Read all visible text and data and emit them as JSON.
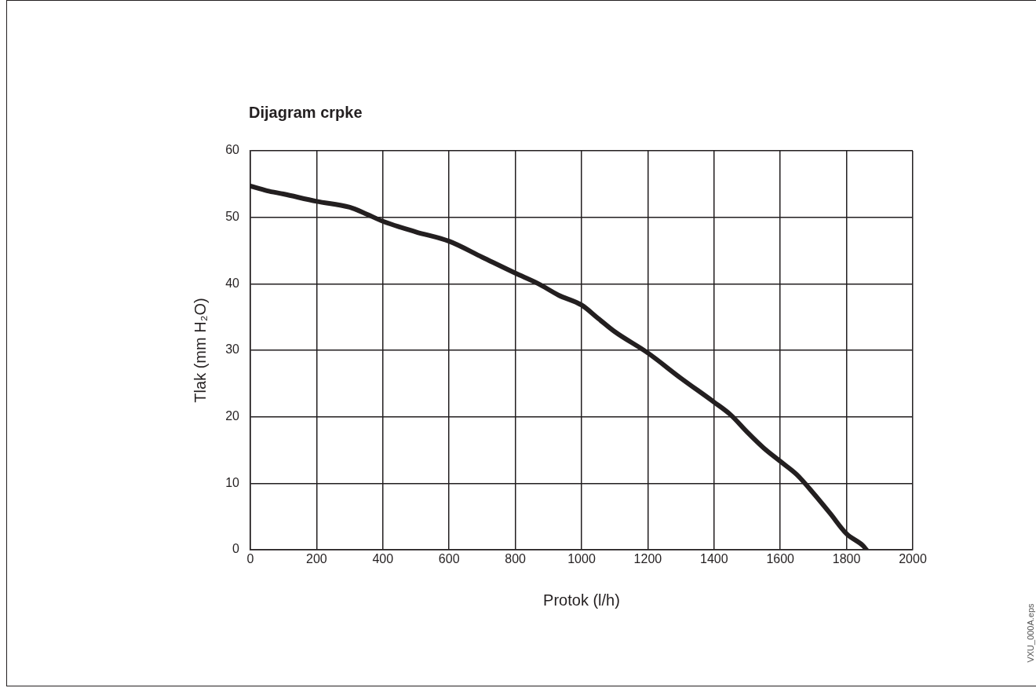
{
  "chart_data": {
    "type": "line",
    "title": "Dijagram crpke",
    "xlabel": "Protok (l/h)",
    "ylabel": "Tlak (mm H₂O)",
    "x": [
      0,
      50,
      100,
      200,
      300,
      350,
      400,
      500,
      600,
      700,
      800,
      870,
      930,
      1000,
      1050,
      1100,
      1200,
      1300,
      1400,
      1450,
      1500,
      1550,
      1600,
      1650,
      1700,
      1750,
      1800,
      1850,
      1860
    ],
    "series": [
      {
        "color": "#231f20",
        "values": [
          54.7,
          54.0,
          53.5,
          52.4,
          51.5,
          50.5,
          49.4,
          47.8,
          46.4,
          44.0,
          41.6,
          40.0,
          38.3,
          36.8,
          34.8,
          32.8,
          29.6,
          25.8,
          22.2,
          20.3,
          17.7,
          15.3,
          13.3,
          11.3,
          8.5,
          5.5,
          2.4,
          0.6,
          0
        ]
      }
    ],
    "xlim": [
      0,
      2000
    ],
    "xticks": [
      0,
      200,
      400,
      600,
      800,
      1000,
      1200,
      1400,
      1600,
      1800,
      2000
    ],
    "ylim": [
      0,
      60
    ],
    "yticks": [
      0,
      10,
      20,
      30,
      40,
      50,
      60
    ],
    "grid": true,
    "legend": false,
    "marker": "none",
    "line_style": "solid",
    "annotations": [
      "VXU_000A.eps"
    ]
  }
}
